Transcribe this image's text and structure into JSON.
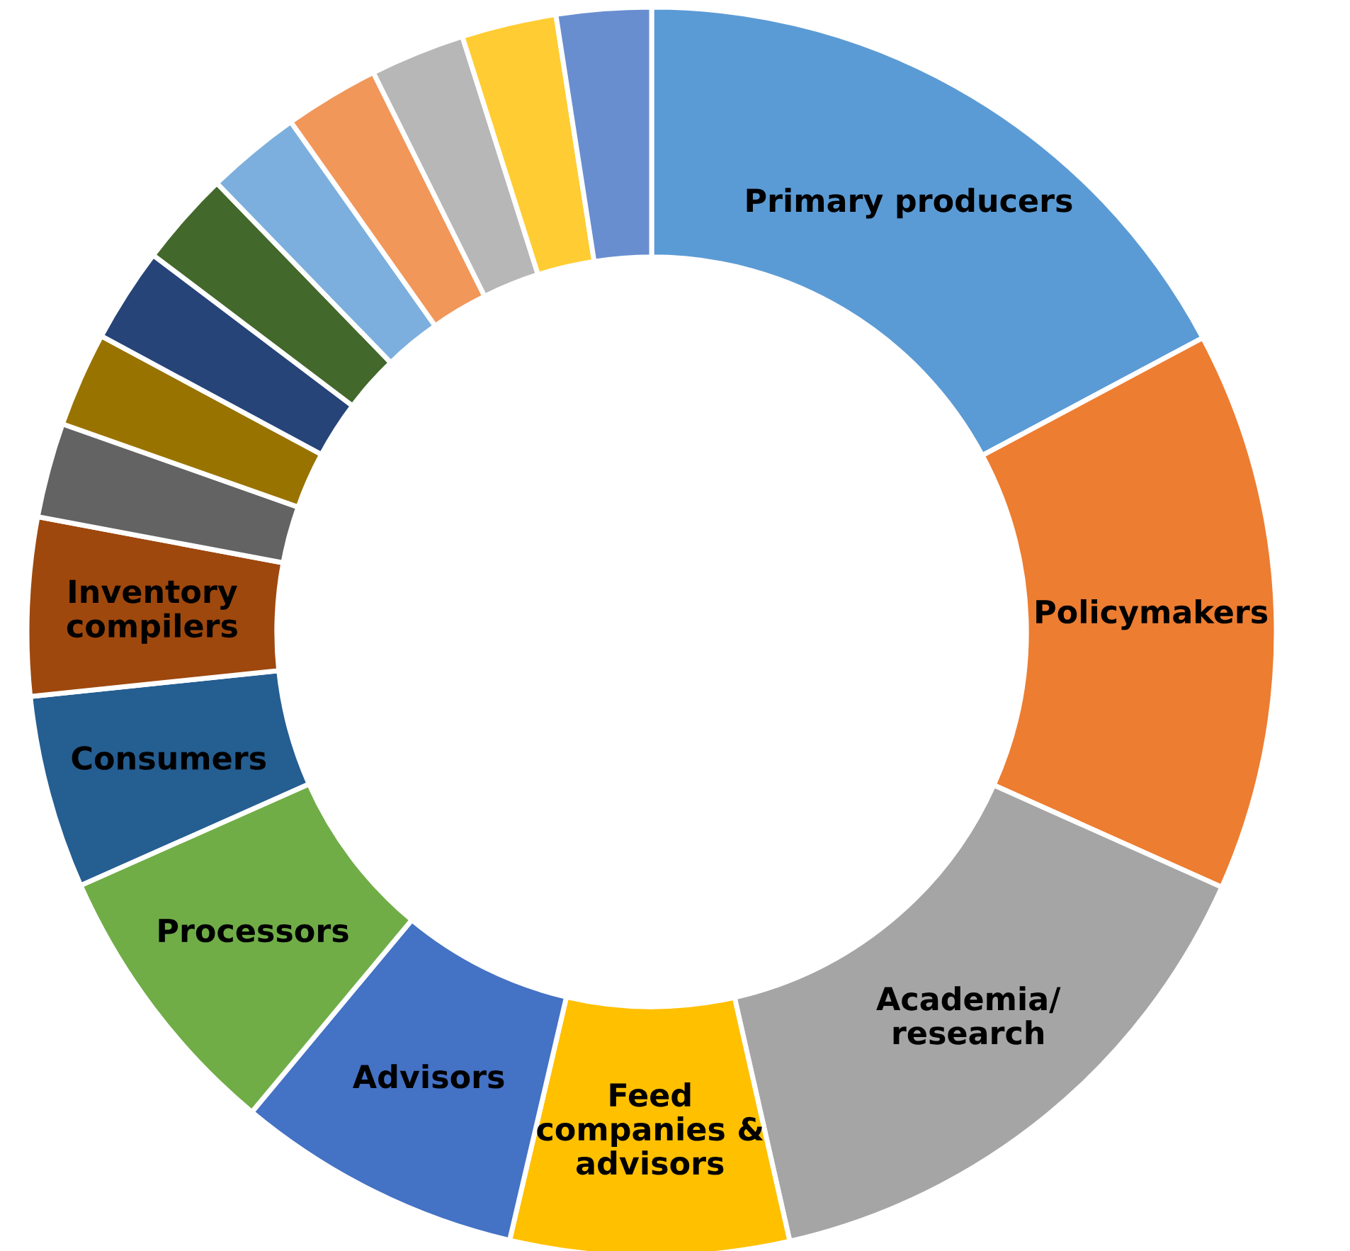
{
  "chart_data": {
    "type": "donut",
    "categories": [
      "Primary producers",
      "Policymakers",
      "Academia/\nresearch",
      "Feed\ncompanies &\nadvisors",
      "Advisors",
      "Processors",
      "Consumers",
      "Inventory\ncompilers",
      null,
      null,
      null,
      null,
      null,
      null,
      null,
      null,
      null
    ],
    "values": [
      17.2,
      14.5,
      14.75,
      7.2,
      7.4,
      7.3,
      5.0,
      4.6,
      2.45,
      2.45,
      2.45,
      2.45,
      2.45,
      2.45,
      2.45,
      2.45,
      2.45
    ],
    "colors": [
      "#5b9bd5",
      "#ed7d31",
      "#a5a5a5",
      "#ffc000",
      "#4472c4",
      "#70ad47",
      "#255e91",
      "#9e480e",
      "#636363",
      "#997300",
      "#264478",
      "#43682b",
      "#7cafdd",
      "#f1975a",
      "#b7b7b7",
      "#ffcd33",
      "#698ed0"
    ]
  }
}
